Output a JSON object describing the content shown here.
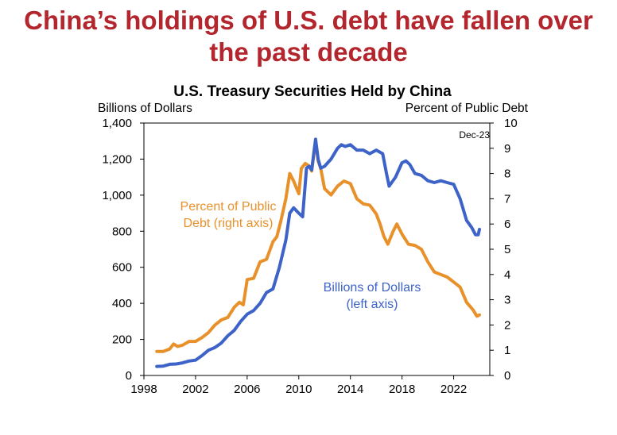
{
  "headline": {
    "line1": "China’s holdings of U.S. debt have fallen over",
    "line2": "the past decade"
  },
  "chart_data": {
    "type": "line",
    "title": "U.S. Treasury Securities Held by China",
    "ylabel_left": "Billions of Dollars",
    "ylabel_right": "Percent of Public Debt",
    "xlim": [
      1998,
      2024.8
    ],
    "ylim_left": [
      0,
      1400
    ],
    "ylim_right": [
      0,
      10
    ],
    "x_ticks": [
      1998,
      2002,
      2006,
      2010,
      2014,
      2018,
      2022
    ],
    "y_ticks_left": [
      "0",
      "200",
      "400",
      "600",
      "800",
      "1,000",
      "1,200",
      "1,400"
    ],
    "y_ticks_right": [
      "0",
      "1",
      "2",
      "3",
      "4",
      "5",
      "6",
      "7",
      "8",
      "9",
      "10"
    ],
    "grid": false,
    "date_stamp": "Dec-23",
    "colors": {
      "blue": "#3d63c8",
      "orange": "#e8912b",
      "headline": "#b3262d"
    },
    "annotations": {
      "orange_line1": "Percent of Public",
      "orange_line2": "Debt (right axis)",
      "blue_line1": "Billions of Dollars",
      "blue_line2": "(left axis)"
    },
    "series": [
      {
        "axis": "right",
        "color": "#e8912b",
        "x": [
          1999.0,
          1999.5,
          2000.0,
          2000.3,
          2000.6,
          2001.0,
          2001.5,
          2002.0,
          2002.5,
          2003.0,
          2003.5,
          2004.0,
          2004.5,
          2005.0,
          2005.4,
          2005.7,
          2006.0,
          2006.5,
          2007.0,
          2007.5,
          2008.0,
          2008.3,
          2008.6,
          2009.0,
          2009.3,
          2009.6,
          2010.0,
          2010.2,
          2010.5,
          2010.8,
          2011.0,
          2011.3,
          2011.5,
          2011.7,
          2012.0,
          2012.5,
          2013.0,
          2013.5,
          2014.0,
          2014.5,
          2015.0,
          2015.5,
          2016.0,
          2016.3,
          2016.6,
          2016.9,
          2017.3,
          2017.6,
          2018.0,
          2018.5,
          2019.0,
          2019.5,
          2020.0,
          2020.5,
          2021.0,
          2021.5,
          2022.0,
          2022.5,
          2023.0,
          2023.5,
          2023.8,
          2024.0
        ],
        "values": [
          0.95,
          0.95,
          1.05,
          1.25,
          1.15,
          1.2,
          1.35,
          1.35,
          1.5,
          1.7,
          2.0,
          2.2,
          2.3,
          2.7,
          2.9,
          2.8,
          3.8,
          3.85,
          4.5,
          4.6,
          5.3,
          5.5,
          6.1,
          7.0,
          8.0,
          7.7,
          7.2,
          8.2,
          8.4,
          8.3,
          8.1,
          9.3,
          8.5,
          8.2,
          7.4,
          7.15,
          7.5,
          7.7,
          7.6,
          7.0,
          6.8,
          6.75,
          6.4,
          6.0,
          5.5,
          5.2,
          5.7,
          6.0,
          5.6,
          5.2,
          5.15,
          5.0,
          4.5,
          4.1,
          4.0,
          3.9,
          3.7,
          3.5,
          2.9,
          2.6,
          2.35,
          2.4
        ]
      },
      {
        "axis": "left",
        "color": "#3d63c8",
        "x": [
          1999.0,
          1999.5,
          2000.0,
          2000.5,
          2001.0,
          2001.5,
          2002.0,
          2002.5,
          2003.0,
          2003.5,
          2004.0,
          2004.5,
          2005.0,
          2005.5,
          2006.0,
          2006.5,
          2007.0,
          2007.5,
          2008.0,
          2008.5,
          2009.0,
          2009.3,
          2009.6,
          2010.0,
          2010.3,
          2010.6,
          2010.8,
          2011.0,
          2011.3,
          2011.5,
          2011.7,
          2012.0,
          2012.5,
          2013.0,
          2013.3,
          2013.6,
          2014.0,
          2014.5,
          2015.0,
          2015.5,
          2016.0,
          2016.5,
          2016.8,
          2017.0,
          2017.5,
          2018.0,
          2018.3,
          2018.6,
          2019.0,
          2019.5,
          2020.0,
          2020.5,
          2021.0,
          2021.5,
          2022.0,
          2022.5,
          2023.0,
          2023.4,
          2023.7,
          2023.9,
          2024.0
        ],
        "values": [
          50,
          52,
          62,
          64,
          70,
          80,
          85,
          110,
          140,
          155,
          180,
          220,
          250,
          300,
          340,
          360,
          400,
          460,
          480,
          600,
          750,
          900,
          930,
          900,
          880,
          1150,
          1160,
          1140,
          1310,
          1200,
          1150,
          1160,
          1200,
          1260,
          1280,
          1270,
          1280,
          1250,
          1250,
          1230,
          1250,
          1230,
          1120,
          1050,
          1100,
          1180,
          1190,
          1170,
          1120,
          1110,
          1080,
          1070,
          1080,
          1070,
          1060,
          980,
          860,
          820,
          780,
          780,
          810
        ]
      }
    ]
  }
}
